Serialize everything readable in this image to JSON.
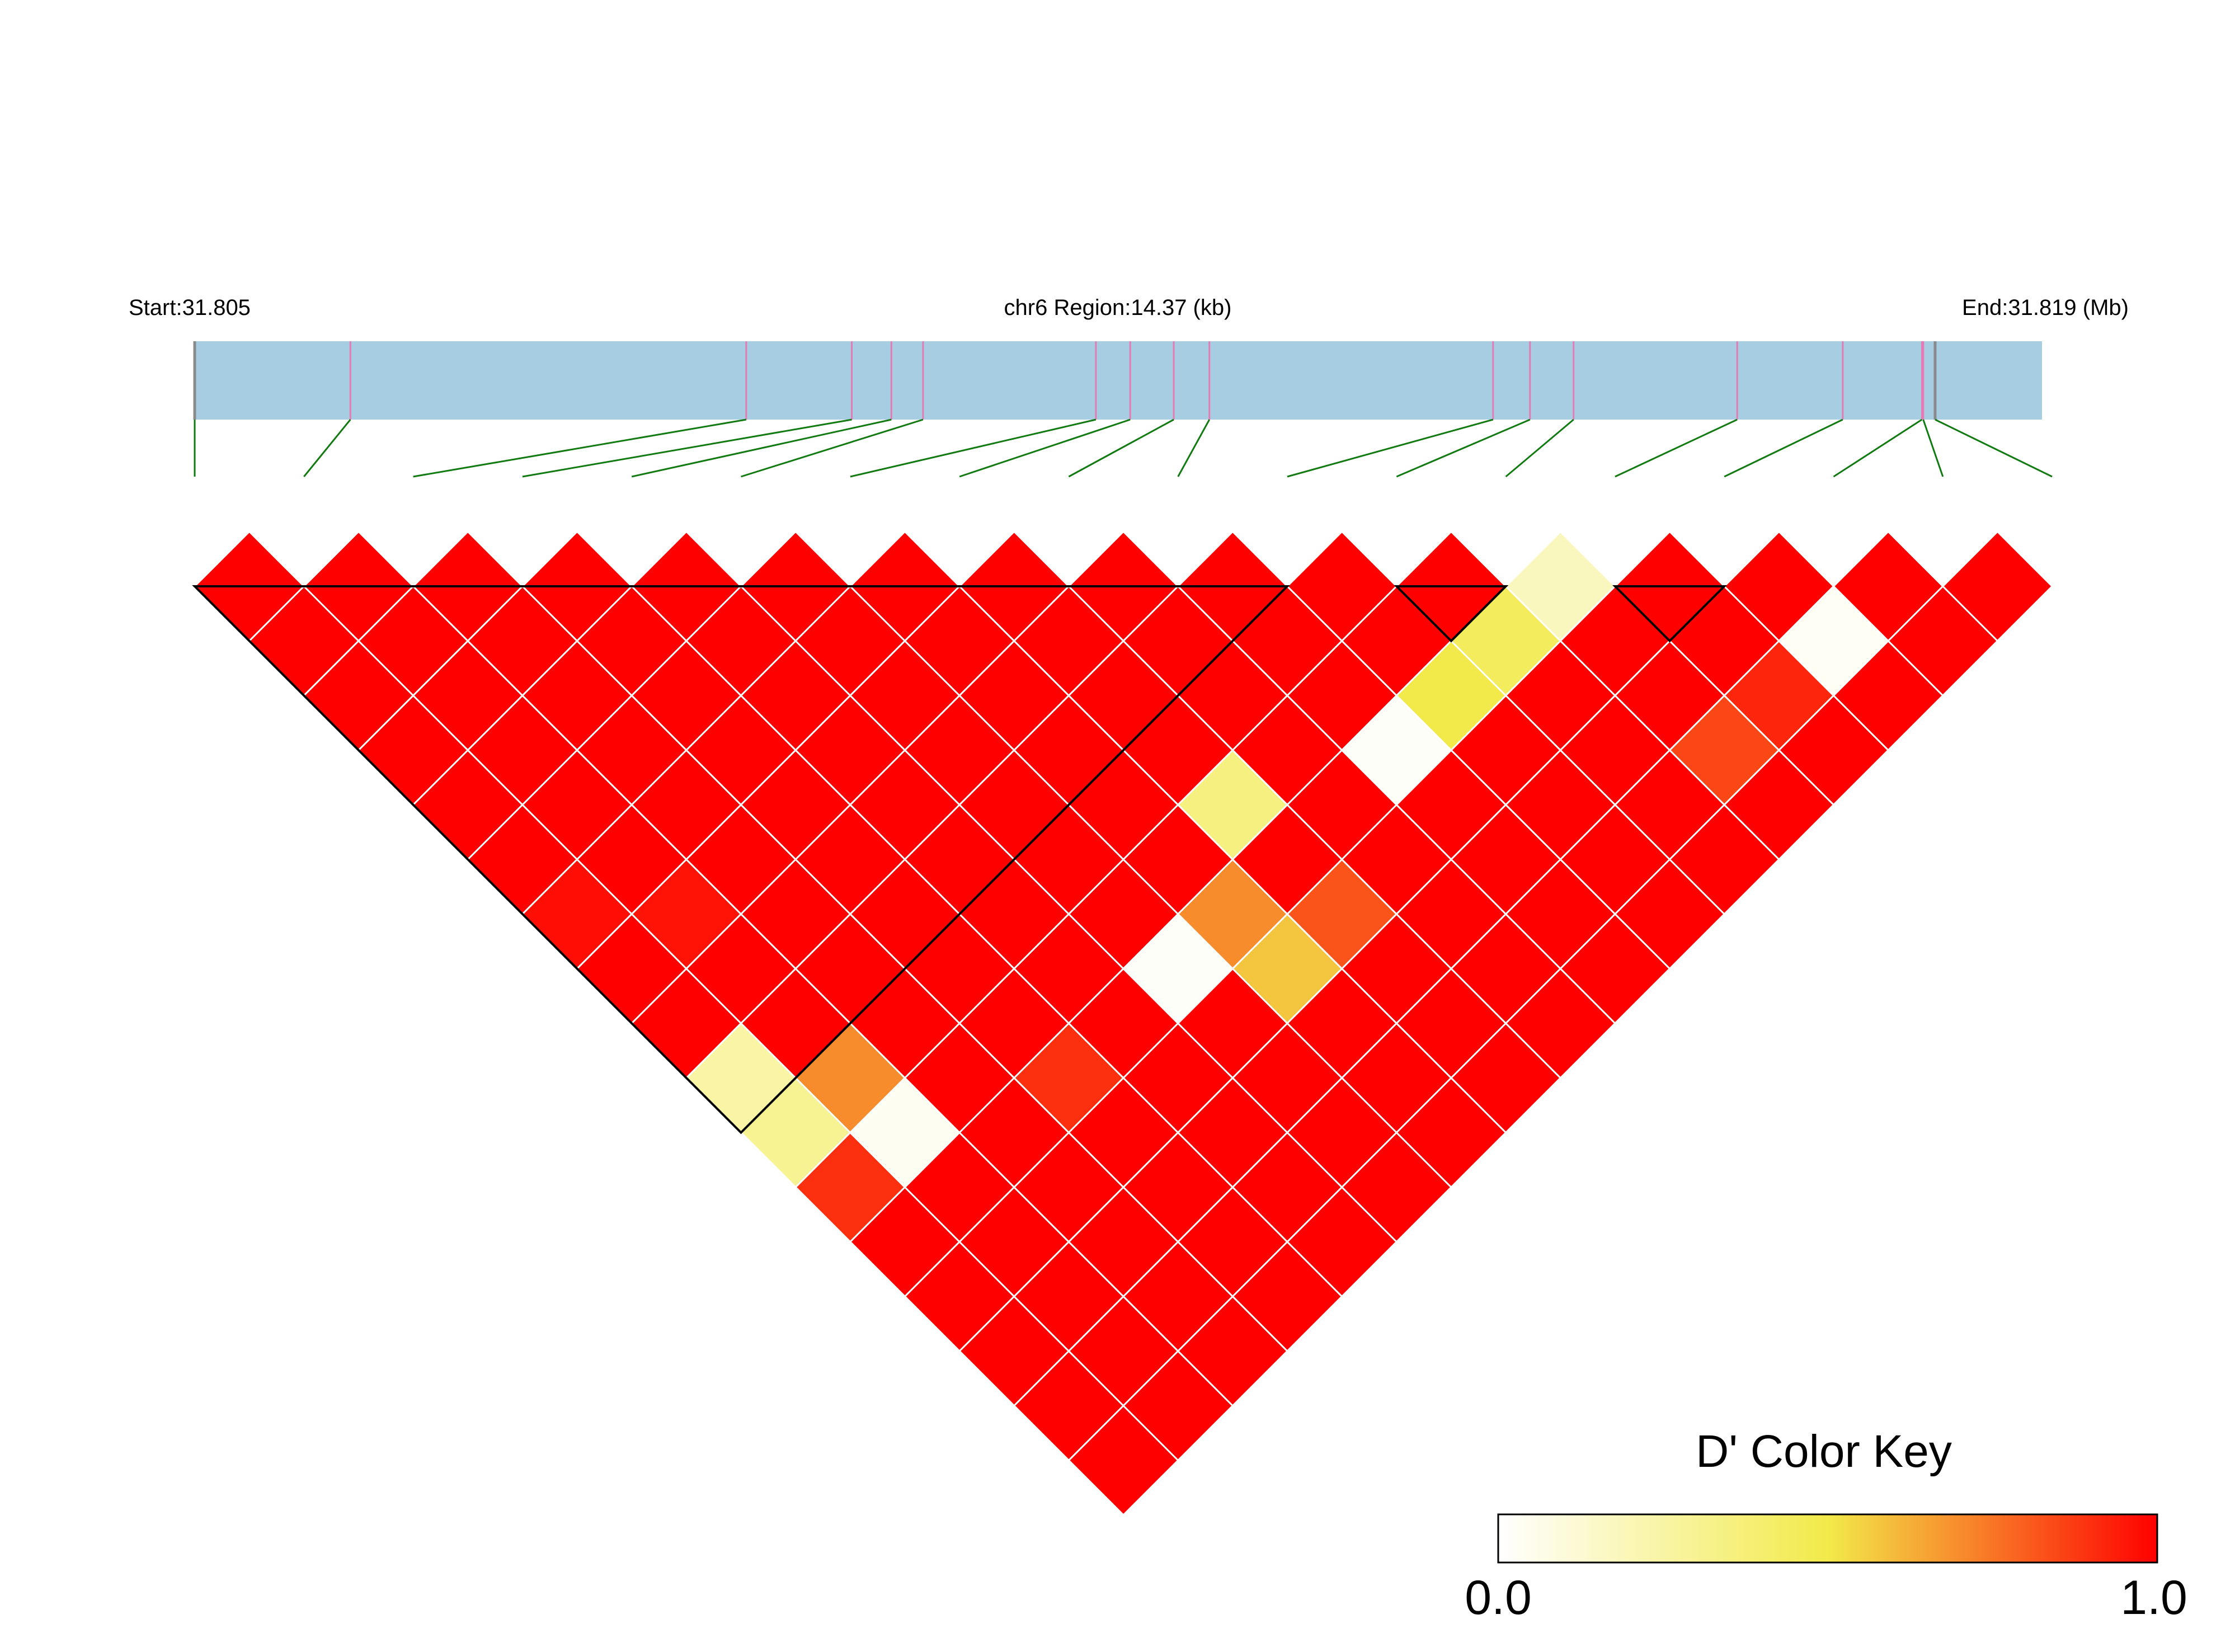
{
  "chart_data": {
    "type": "heatmap",
    "header": {
      "start_label": "Start:31.805",
      "region_label": "chr6 Region:14.37 (kb)",
      "end_label": "End:31.819 (Mb)"
    },
    "region": {
      "chromosome": "chr6",
      "start_mb": 31.805,
      "end_mb": 31.819,
      "length_kb": 14.37
    },
    "snp_count": 18,
    "snp_positions_mb": [
      31.805,
      31.80618,
      31.80918,
      31.80998,
      31.81028,
      31.81052,
      31.81183,
      31.81209,
      31.81242,
      31.81269,
      31.81484,
      31.81512,
      31.81545,
      31.81669,
      31.81749,
      31.81809,
      31.8181,
      31.81819
    ],
    "ld_matrix_dprime": [
      [
        1,
        1,
        1,
        1,
        1,
        1,
        1,
        1,
        1,
        1,
        1,
        1,
        1,
        1,
        1,
        1,
        1
      ],
      [
        1,
        1,
        1,
        1,
        1,
        1,
        1,
        1,
        1,
        1,
        1,
        1,
        1,
        1,
        1,
        1
      ],
      [
        1,
        1,
        1,
        1,
        1,
        1,
        1,
        1,
        1,
        1,
        1,
        1,
        1,
        1,
        1
      ],
      [
        1,
        1,
        1,
        1,
        1,
        1,
        1,
        1,
        1,
        1,
        1,
        1,
        1,
        1
      ],
      [
        1,
        1,
        1,
        1,
        1,
        1,
        1,
        1,
        1,
        1,
        1,
        1,
        1
      ],
      [
        1,
        1,
        1,
        1,
        1,
        1,
        1,
        1,
        1,
        1,
        1,
        1
      ],
      [
        1,
        1,
        1,
        1,
        1,
        1,
        1,
        1,
        1,
        1,
        1
      ],
      [
        1,
        1,
        1,
        1,
        1,
        1,
        1,
        1,
        1,
        1
      ],
      [
        1,
        1,
        1,
        1,
        1,
        1,
        1,
        1,
        1
      ],
      [
        1,
        1,
        1,
        1,
        1,
        1,
        1,
        1
      ],
      [
        1,
        1,
        1,
        1,
        1,
        1,
        1
      ],
      [
        1,
        1,
        1,
        1,
        1,
        1
      ],
      [
        1,
        1,
        1,
        1,
        1
      ],
      [
        1,
        1,
        1,
        1
      ],
      [
        1,
        1,
        1
      ],
      [
        1,
        1
      ],
      [
        1
      ]
    ],
    "ld_overrides": [
      {
        "i": 12,
        "j": 13,
        "value": 0.18
      },
      {
        "i": 11,
        "j": 13,
        "value": 0.45
      },
      {
        "i": 10,
        "j": 13,
        "value": 0.5
      },
      {
        "i": 9,
        "j": 13,
        "value": 0.02
      },
      {
        "i": 14,
        "j": 16,
        "value": 0.03
      },
      {
        "i": 13,
        "j": 16,
        "value": 0.92
      },
      {
        "i": 12,
        "j": 16,
        "value": 0.85
      },
      {
        "i": 7,
        "j": 12,
        "value": 0.35
      },
      {
        "i": 7,
        "j": 14,
        "value": 0.82
      },
      {
        "i": 6,
        "j": 14,
        "value": 0.58
      },
      {
        "i": 6,
        "j": 13,
        "value": 0.7
      },
      {
        "i": 5,
        "j": 13,
        "value": 0.02
      },
      {
        "i": 3,
        "j": 13,
        "value": 0.9
      },
      {
        "i": 0,
        "j": 10,
        "value": 0.25
      },
      {
        "i": 0,
        "j": 11,
        "value": 0.3
      },
      {
        "i": 1,
        "j": 11,
        "value": 0.7
      },
      {
        "i": 1,
        "j": 12,
        "value": 0.04
      },
      {
        "i": 0,
        "j": 12,
        "value": 0.9
      },
      {
        "i": 1,
        "j": 8,
        "value": 0.96
      },
      {
        "i": 0,
        "j": 7,
        "value": 0.97
      }
    ],
    "ld_blocks": [
      {
        "from": 0,
        "to": 10
      },
      {
        "from": 11,
        "to": 12
      },
      {
        "from": 13,
        "to": 14
      }
    ],
    "color_key": {
      "title": "D' Color Key",
      "min_label": "0.0",
      "max_label": "1.0",
      "range": [
        0,
        1
      ],
      "colors": [
        "#ffffff",
        "#f2ea4a",
        "#ff0000"
      ]
    },
    "colors": {
      "gene_bar": "#a7cde2",
      "snp_tick": "#e47bb5",
      "connector": "#117a11",
      "cell_border": "#ffffff",
      "block_outline": "#000000"
    }
  }
}
